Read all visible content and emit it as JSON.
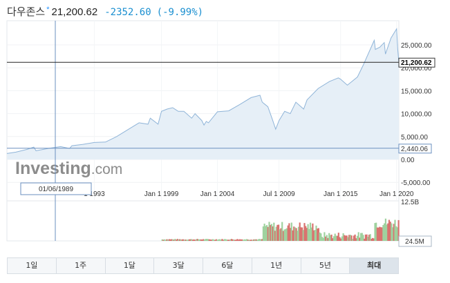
{
  "header": {
    "name": "다우존스",
    "star": "*",
    "price": "21,200.62",
    "change": "-2352.60",
    "change_pct": "(-9.99%)"
  },
  "colors": {
    "line": "#8fb4d8",
    "fill": "#e6eff7",
    "vol_up": "#9fd29f",
    "vol_down": "#d9736f",
    "accent": "#1a8fd0"
  },
  "crosshair": {
    "date_label": "01/06/1989",
    "price_label": "2,440.06"
  },
  "current_price_label": "21,200.62",
  "watermark": {
    "bold": "Investing",
    "light": ".com"
  },
  "volume_labels": {
    "top": "12.5B",
    "bottom": "24.5M"
  },
  "timeframes": [
    "1일",
    "1주",
    "1달",
    "3달",
    "6달",
    "1년",
    "5년",
    "최대"
  ],
  "active_timeframe": "최대",
  "chart_data": {
    "type": "area",
    "x_tick_labels": [
      "1 1993",
      "Jan 1 1999",
      "Jan 1 2004",
      "Jul 1 2009",
      "Jan 1 2015",
      "Jan 1 2020"
    ],
    "x_tick_years": [
      1993,
      1999,
      2004,
      2009.5,
      2015,
      2020
    ],
    "y_tick_labels": [
      "25,000.00",
      "20,000.00",
      "15,000.00",
      "10,000.00",
      "5,000.00",
      "0.00",
      "-5,000.00"
    ],
    "y_tick_values": [
      25000,
      20000,
      15000,
      10000,
      5000,
      0,
      -5000
    ],
    "xlim": [
      1985.2,
      2020.2
    ],
    "ylim": [
      -5000,
      29000
    ],
    "series": [
      {
        "x": [
          1985.2,
          1986,
          1987,
          1987.6,
          1987.8,
          1988,
          1989,
          1990,
          1990.8,
          1991,
          1992,
          1993,
          1994,
          1995,
          1996,
          1997,
          1997.8,
          1998,
          1998.7,
          1999,
          1999.5,
          2000,
          2000.5,
          2001,
          2001.7,
          2002,
          2002.6,
          2002.8,
          2003,
          2003.2,
          2004,
          2005,
          2006,
          2007,
          2007.8,
          2008,
          2008.5,
          2008.9,
          2009.2,
          2009.5,
          2010,
          2010.5,
          2011,
          2011.7,
          2012,
          2013,
          2014,
          2014.8,
          2015,
          2015.6,
          2016,
          2016.5,
          2017,
          2018,
          2018.1,
          2018.5,
          2018.9,
          2019,
          2019.5,
          2020,
          2020.1,
          2020.2
        ],
        "y": [
          1300,
          1600,
          2200,
          2700,
          1900,
          2000,
          2440,
          2800,
          2400,
          3000,
          3300,
          3700,
          3800,
          5000,
          6500,
          8000,
          7700,
          9000,
          7700,
          10500,
          11000,
          11300,
          10500,
          10500,
          9000,
          10000,
          8500,
          7500,
          8300,
          8000,
          10400,
          10600,
          12000,
          13500,
          14000,
          12500,
          11500,
          8800,
          6600,
          8500,
          10500,
          10000,
          12500,
          11000,
          13000,
          15500,
          17000,
          17800,
          17500,
          16200,
          17000,
          18000,
          20500,
          26000,
          24000,
          24500,
          25500,
          23000,
          26500,
          28500,
          24000,
          21200
        ]
      }
    ],
    "volume": {
      "range": [
        1999,
        2020.2
      ],
      "labels_top": "12.5B",
      "labels_bottom": "24.5M"
    }
  }
}
